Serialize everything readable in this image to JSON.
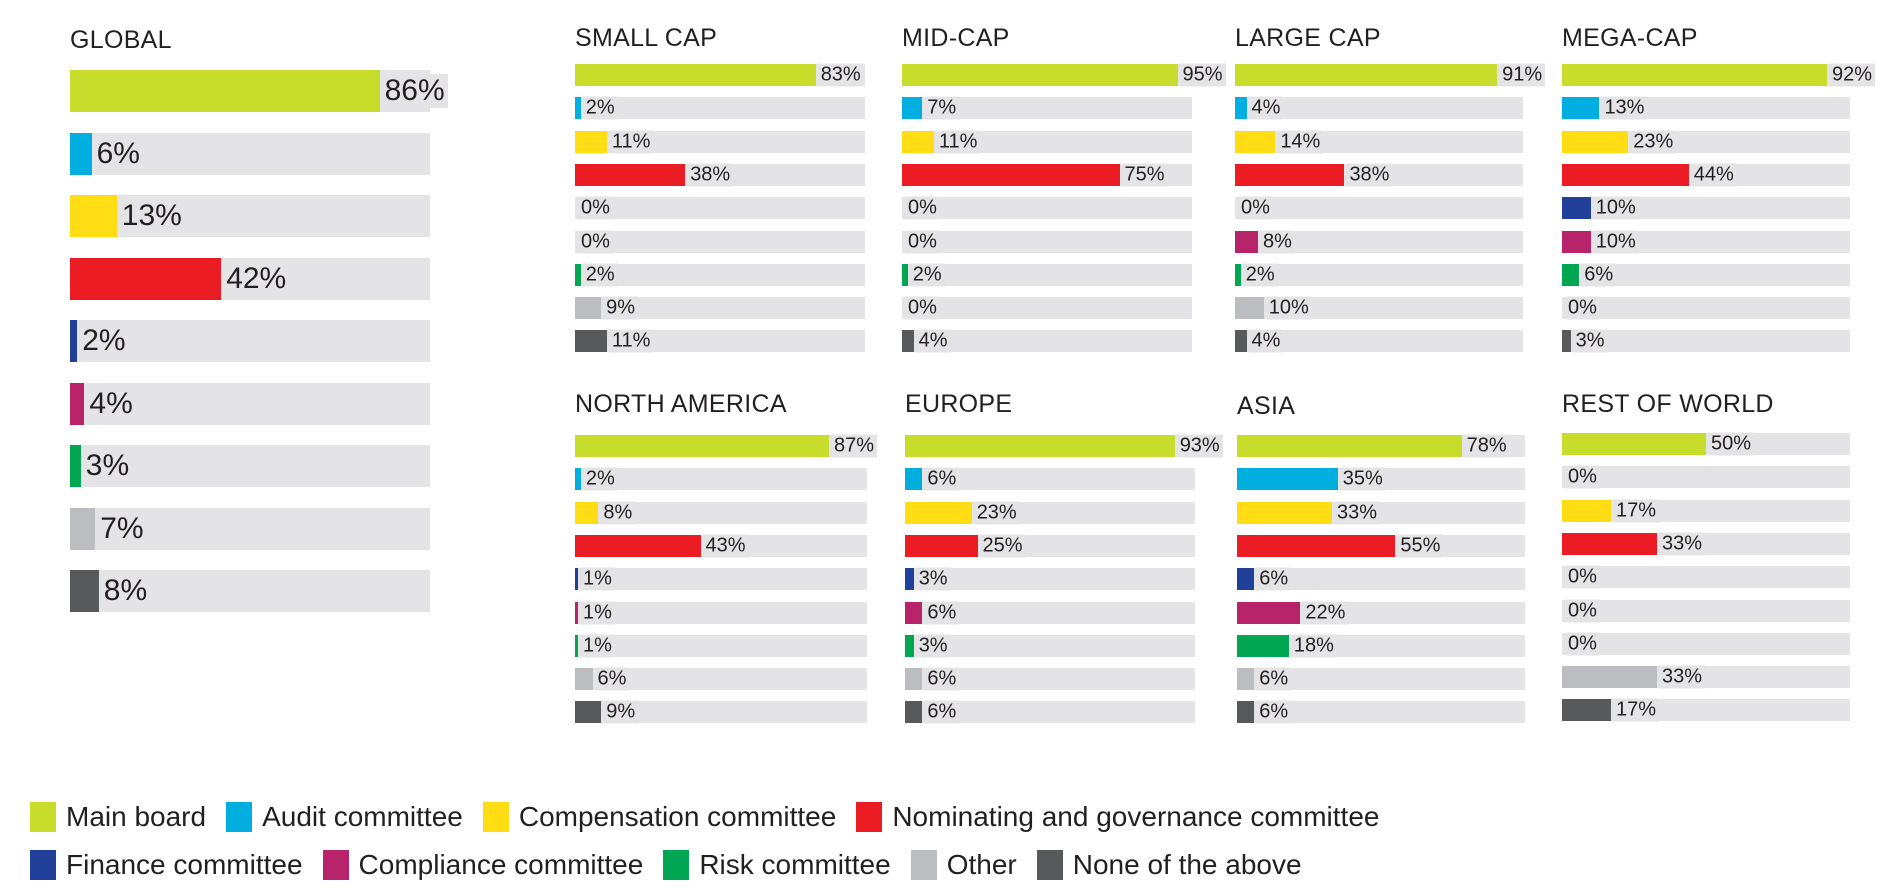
{
  "legend": [
    {
      "label": "Main board",
      "color": "#c8dc2c"
    },
    {
      "label": "Audit committee",
      "color": "#00aee0"
    },
    {
      "label": "Compensation committee",
      "color": "#ffdd15"
    },
    {
      "label": "Nominating and governance committee",
      "color": "#ec1c24"
    },
    {
      "label": "Finance committee",
      "color": "#21409a"
    },
    {
      "label": "Compliance committee",
      "color": "#b7246a"
    },
    {
      "label": "Risk committee",
      "color": "#00a651"
    },
    {
      "label": "Other",
      "color": "#bcbdc0"
    },
    {
      "label": "None of the above",
      "color": "#58595b"
    }
  ],
  "chart_data": [
    {
      "type": "bar",
      "orientation": "horizontal",
      "title": "GLOBAL",
      "xlim": [
        0,
        100
      ],
      "unit": "%",
      "categories": [
        "Main board",
        "Audit committee",
        "Compensation committee",
        "Nominating and governance committee",
        "Finance committee",
        "Compliance committee",
        "Risk committee",
        "Other",
        "None of the above"
      ],
      "values": [
        86,
        6,
        13,
        42,
        2,
        4,
        3,
        7,
        8
      ],
      "labels": [
        "86%",
        "6%",
        "13%",
        "42%",
        "2%",
        "4%",
        "3%",
        "7%",
        "8%"
      ]
    },
    {
      "type": "bar",
      "orientation": "horizontal",
      "title": "SMALL CAP",
      "xlim": [
        0,
        100
      ],
      "unit": "%",
      "categories": [
        "Main board",
        "Audit committee",
        "Compensation committee",
        "Nominating and governance committee",
        "Finance committee",
        "Compliance committee",
        "Risk committee",
        "Other",
        "None of the above"
      ],
      "values": [
        83,
        2,
        11,
        38,
        0,
        0,
        2,
        9,
        11
      ],
      "labels": [
        "83%",
        "2%",
        "11%",
        "38%",
        "0%",
        "0%",
        "2%",
        "9%",
        "11%"
      ]
    },
    {
      "type": "bar",
      "orientation": "horizontal",
      "title": "MID-CAP",
      "xlim": [
        0,
        100
      ],
      "unit": "%",
      "categories": [
        "Main board",
        "Audit committee",
        "Compensation committee",
        "Nominating and governance committee",
        "Finance committee",
        "Compliance committee",
        "Risk committee",
        "Other",
        "None of the above"
      ],
      "values": [
        95,
        7,
        11,
        75,
        0,
        0,
        2,
        0,
        4
      ],
      "labels": [
        "95%",
        "7%",
        "11%",
        "75%",
        "0%",
        "0%",
        "2%",
        "0%",
        "4%"
      ]
    },
    {
      "type": "bar",
      "orientation": "horizontal",
      "title": "LARGE CAP",
      "xlim": [
        0,
        100
      ],
      "unit": "%",
      "categories": [
        "Main board",
        "Audit committee",
        "Compensation committee",
        "Nominating and governance committee",
        "Finance committee",
        "Compliance committee",
        "Risk committee",
        "Other",
        "None of the above"
      ],
      "values": [
        91,
        4,
        14,
        38,
        0,
        8,
        2,
        10,
        4
      ],
      "labels": [
        "91%",
        "4%",
        "14%",
        "38%",
        "0%",
        "8%",
        "2%",
        "10%",
        "4%"
      ]
    },
    {
      "type": "bar",
      "orientation": "horizontal",
      "title": "MEGA-CAP",
      "xlim": [
        0,
        100
      ],
      "unit": "%",
      "categories": [
        "Main board",
        "Audit committee",
        "Compensation committee",
        "Nominating and governance committee",
        "Finance committee",
        "Compliance committee",
        "Risk committee",
        "Other",
        "None of the above"
      ],
      "values": [
        92,
        13,
        23,
        44,
        10,
        10,
        6,
        0,
        3
      ],
      "labels": [
        "92%",
        "13%",
        "23%",
        "44%",
        "10%",
        "10%",
        "6%",
        "0%",
        "3%"
      ]
    },
    {
      "type": "bar",
      "orientation": "horizontal",
      "title": "NORTH AMERICA",
      "xlim": [
        0,
        100
      ],
      "unit": "%",
      "categories": [
        "Main board",
        "Audit committee",
        "Compensation committee",
        "Nominating and governance committee",
        "Finance committee",
        "Compliance committee",
        "Risk committee",
        "Other",
        "None of the above"
      ],
      "values": [
        87,
        2,
        8,
        43,
        1,
        1,
        1,
        6,
        9
      ],
      "labels": [
        "87%",
        "2%",
        "8%",
        "43%",
        "1%",
        "1%",
        "1%",
        "6%",
        "9%"
      ]
    },
    {
      "type": "bar",
      "orientation": "horizontal",
      "title": "EUROPE",
      "xlim": [
        0,
        100
      ],
      "unit": "%",
      "categories": [
        "Main board",
        "Audit committee",
        "Compensation committee",
        "Nominating and governance committee",
        "Finance committee",
        "Compliance committee",
        "Risk committee",
        "Other",
        "None of the above"
      ],
      "values": [
        93,
        6,
        23,
        25,
        3,
        6,
        3,
        6,
        6
      ],
      "labels": [
        "93%",
        "6%",
        "23%",
        "25%",
        "3%",
        "6%",
        "3%",
        "6%",
        "6%"
      ]
    },
    {
      "type": "bar",
      "orientation": "horizontal",
      "title": "ASIA",
      "xlim": [
        0,
        100
      ],
      "unit": "%",
      "categories": [
        "Main board",
        "Audit committee",
        "Compensation committee",
        "Nominating and governance committee",
        "Finance committee",
        "Compliance committee",
        "Risk committee",
        "Other",
        "None of the above"
      ],
      "values": [
        78,
        35,
        33,
        55,
        6,
        22,
        18,
        6,
        6
      ],
      "labels": [
        "78%",
        "35%",
        "33%",
        "55%",
        "6%",
        "22%",
        "18%",
        "6%",
        "6%"
      ]
    },
    {
      "type": "bar",
      "orientation": "horizontal",
      "title": "REST OF WORLD",
      "xlim": [
        0,
        100
      ],
      "unit": "%",
      "categories": [
        "Main board",
        "Audit committee",
        "Compensation committee",
        "Nominating and governance committee",
        "Finance committee",
        "Compliance committee",
        "Risk committee",
        "Other",
        "None of the above"
      ],
      "values": [
        50,
        0,
        17,
        33,
        0,
        0,
        0,
        33,
        17
      ],
      "labels": [
        "50%",
        "0%",
        "17%",
        "33%",
        "0%",
        "0%",
        "0%",
        "33%",
        "17%"
      ]
    }
  ]
}
